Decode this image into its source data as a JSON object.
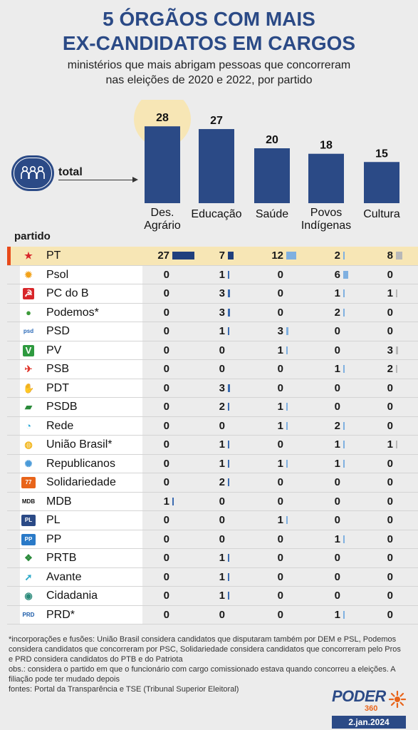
{
  "header": {
    "title_line1": "5 ÓRGÃOS COM MAIS",
    "title_line2": "EX-CANDIDATOS EM CARGOS",
    "subtitle_line1": "ministérios que mais abrigam pessoas que concorreram",
    "subtitle_line2": "nas eleições de 2020 e 2022, por partido"
  },
  "total_label": "total",
  "partido_label": "partido",
  "colors": {
    "bar": "#2b4a86",
    "highlight": "#f7e6b5",
    "accent": "#e84a1a",
    "mini_pt": "#1f3f7d",
    "mini_blue": "#7fb0e0",
    "mini_gray": "#b8b8b8"
  },
  "chart_data": {
    "type": "bar",
    "categories": [
      "Des. Agrário",
      "Educação",
      "Saúde",
      "Povos Indígenas",
      "Cultura"
    ],
    "category_lines": [
      [
        "Des.",
        "Agrário"
      ],
      [
        "Educação"
      ],
      [
        "Saúde"
      ],
      [
        "Povos",
        "Indígenas"
      ],
      [
        "Cultura"
      ]
    ],
    "values": [
      28,
      27,
      20,
      18,
      15
    ],
    "highlight_index": 0
  },
  "table": {
    "rows": [
      {
        "party": "PT",
        "icon": "pt-star-icon",
        "values": [
          27,
          7,
          12,
          2,
          8
        ]
      },
      {
        "party": "Psol",
        "icon": "psol-sun-icon",
        "values": [
          0,
          1,
          0,
          6,
          0
        ]
      },
      {
        "party": "PC do B",
        "icon": "pcdob-hammer-icon",
        "values": [
          0,
          3,
          0,
          1,
          1
        ]
      },
      {
        "party": "Podemos*",
        "icon": "podemos-leaf-icon",
        "values": [
          0,
          3,
          0,
          2,
          0
        ]
      },
      {
        "party": "PSD",
        "icon": "psd-logo-icon",
        "values": [
          0,
          1,
          3,
          0,
          0
        ]
      },
      {
        "party": "PV",
        "icon": "pv-logo-icon",
        "values": [
          0,
          0,
          1,
          0,
          3
        ]
      },
      {
        "party": "PSB",
        "icon": "psb-dove-icon",
        "values": [
          0,
          0,
          0,
          1,
          2
        ]
      },
      {
        "party": "PDT",
        "icon": "pdt-hand-icon",
        "values": [
          0,
          3,
          0,
          0,
          0
        ]
      },
      {
        "party": "PSDB",
        "icon": "psdb-toucan-icon",
        "values": [
          0,
          2,
          1,
          0,
          0
        ]
      },
      {
        "party": "Rede",
        "icon": "rede-swirl-icon",
        "values": [
          0,
          0,
          1,
          2,
          0
        ]
      },
      {
        "party": "União Brasil*",
        "icon": "uniao-brasil-icon",
        "values": [
          0,
          1,
          0,
          1,
          1
        ]
      },
      {
        "party": "Republicanos",
        "icon": "republicanos-tree-icon",
        "values": [
          0,
          1,
          1,
          1,
          0
        ]
      },
      {
        "party": "Solidariedade",
        "icon": "solidariedade-logo-icon",
        "values": [
          0,
          2,
          0,
          0,
          0
        ]
      },
      {
        "party": "MDB",
        "icon": "mdb-logo-icon",
        "values": [
          1,
          0,
          0,
          0,
          0
        ]
      },
      {
        "party": "PL",
        "icon": "pl-logo-icon",
        "values": [
          0,
          0,
          1,
          0,
          0
        ]
      },
      {
        "party": "PP",
        "icon": "pp-logo-icon",
        "values": [
          0,
          0,
          0,
          1,
          0
        ]
      },
      {
        "party": "PRTB",
        "icon": "prtb-eagle-icon",
        "values": [
          0,
          1,
          0,
          0,
          0
        ]
      },
      {
        "party": "Avante",
        "icon": "avante-arrow-icon",
        "values": [
          0,
          1,
          0,
          0,
          0
        ]
      },
      {
        "party": "Cidadania",
        "icon": "cidadania-globe-icon",
        "values": [
          0,
          1,
          0,
          0,
          0
        ]
      },
      {
        "party": "PRD*",
        "icon": "prd-logo-icon",
        "values": [
          0,
          0,
          0,
          1,
          0
        ]
      }
    ]
  },
  "footer": {
    "note1": "*incorporações e fusões: União Brasil considera candidatos que disputaram também por DEM e PSL, Podemos considera candidatos que concorreram por PSC, Solidariedade considera candidatos que concorreram pelo Pros e PRD considera candidatos do PTB e do Patriota",
    "note2": "obs.: considera o partido em que o funcionário com cargo comissionado estava quando concorreu a eleições. A filiação pode ter mudado depois",
    "note3": "fontes: Portal da Transparência e TSE (Tribunal Superior Eleitoral)"
  },
  "brand": {
    "name": "PODER",
    "sub": "360",
    "date": "2.jan.2024"
  }
}
